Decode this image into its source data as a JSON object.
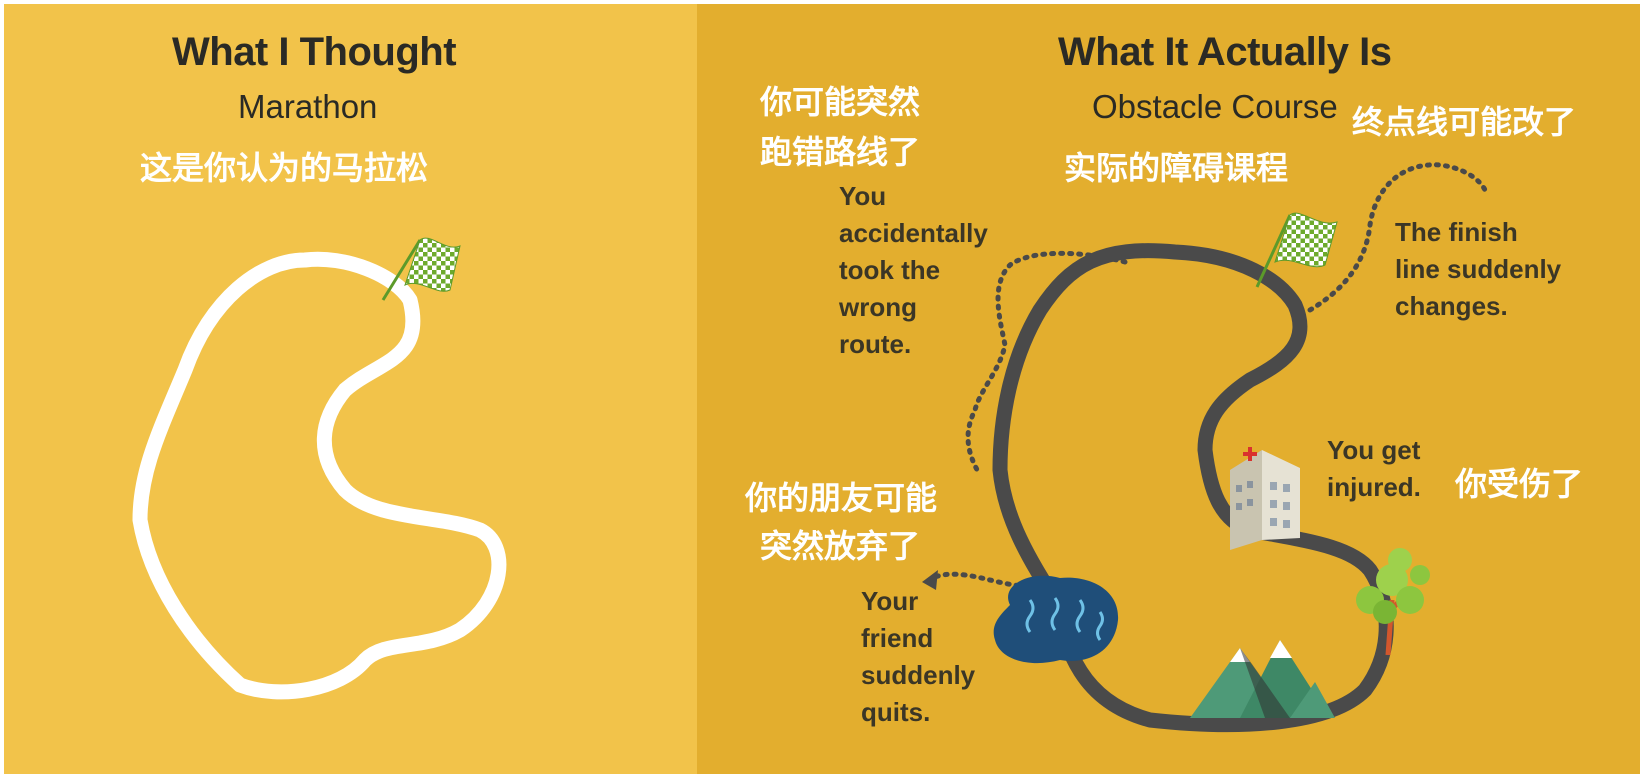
{
  "left": {
    "title": "What I Thought",
    "subtitle": "Marathon",
    "caption_cn": "这是你认为的马拉松"
  },
  "right": {
    "title": "What It Actually Is",
    "subtitle": "Obstacle Course",
    "caption_cn": "实际的障碍课程"
  },
  "annotations": {
    "wrong_route": {
      "cn_line1": "你可能突然",
      "cn_line2": "跑错路线了",
      "en_lines": [
        "You",
        "accidentally",
        "took the",
        "wrong",
        "route."
      ]
    },
    "finish_line": {
      "cn": "终点线可能改了",
      "en_lines": [
        "The finish",
        "line suddenly",
        "changes."
      ]
    },
    "injured": {
      "cn": "你受伤了",
      "en_lines": [
        "You get",
        "injured."
      ]
    },
    "friend_quits": {
      "cn_line1": "你的朋友可能",
      "cn_line2": "突然放弃了",
      "en_lines": [
        "Your",
        "friend",
        "suddenly",
        "quits."
      ]
    }
  },
  "colors": {
    "left_bg": "#F2C34A",
    "right_bg": "#E3AE2E",
    "road": "#4a4a4a",
    "white_track": "#ffffff",
    "flag_green": "#7FB83A",
    "lake": "#1F4E79",
    "mountain": "#4E9A78",
    "tree": "#8DC63F"
  },
  "icons": [
    "checkered-flag-icon",
    "hospital-building-icon",
    "lake-icon",
    "mountain-icon",
    "tree-icon",
    "dotted-arrow-icon"
  ]
}
